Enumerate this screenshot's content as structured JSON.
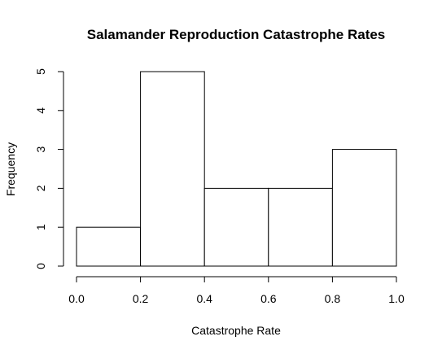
{
  "chart_data": {
    "type": "bar",
    "subtype": "histogram",
    "title": "Salamander Reproduction Catastrophe Rates",
    "xlabel": "Catastrophe Rate",
    "ylabel": "Frequency",
    "bins": [
      {
        "start": 0.0,
        "end": 0.2,
        "count": 1
      },
      {
        "start": 0.2,
        "end": 0.4,
        "count": 5
      },
      {
        "start": 0.4,
        "end": 0.6,
        "count": 2
      },
      {
        "start": 0.6,
        "end": 0.8,
        "count": 2
      },
      {
        "start": 0.8,
        "end": 1.0,
        "count": 3
      }
    ],
    "xlim": [
      0.0,
      1.0
    ],
    "ylim": [
      0,
      5
    ],
    "xticks": [
      "0.0",
      "0.2",
      "0.4",
      "0.6",
      "0.8",
      "1.0"
    ],
    "yticks": [
      "0",
      "1",
      "2",
      "3",
      "4",
      "5"
    ],
    "grid": false,
    "bar_fill": "#ffffff",
    "bar_stroke": "#000000"
  }
}
